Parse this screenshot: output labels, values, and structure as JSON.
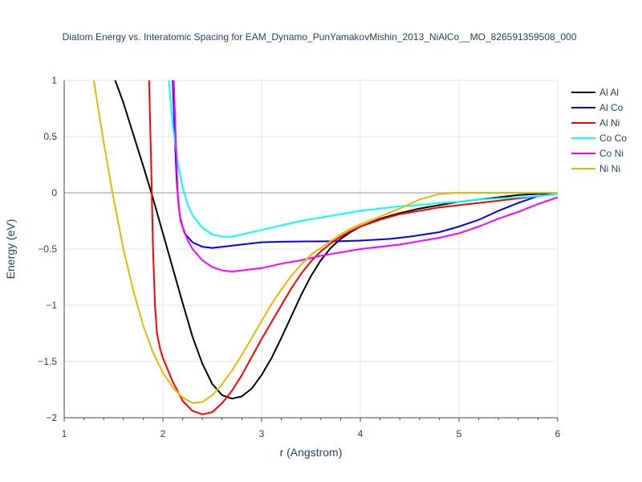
{
  "chart_data": {
    "type": "line",
    "title": "Diatom Energy vs. Interatomic Spacing for EAM_Dynamo_PunYamakovMishin_2013_NiAlCo__MO_826591359508_000",
    "xlabel": "r (Angstrom)",
    "ylabel": "Energy (eV)",
    "xlim": [
      1,
      6
    ],
    "ylim": [
      -2,
      1
    ],
    "xticks": [
      1,
      2,
      3,
      4,
      5,
      6
    ],
    "xtick_labels": [
      "1",
      "2",
      "3",
      "4",
      "5",
      "6"
    ],
    "yticks": [
      1,
      0.5,
      0,
      -0.5,
      -1,
      -1.5,
      -2
    ],
    "ytick_labels": [
      "1",
      "0.5",
      "0",
      "−0.5",
      "−1",
      "−1.5",
      "−2"
    ],
    "grid": true,
    "legend_position": "top-right",
    "series": [
      {
        "name": "Al Al",
        "color": "#000000",
        "points": [
          [
            1.5,
            1.04
          ],
          [
            1.6,
            0.8
          ],
          [
            1.7,
            0.52
          ],
          [
            1.8,
            0.24
          ],
          [
            1.9,
            -0.05
          ],
          [
            2.0,
            -0.36
          ],
          [
            2.1,
            -0.67
          ],
          [
            2.2,
            -0.98
          ],
          [
            2.3,
            -1.28
          ],
          [
            2.4,
            -1.52
          ],
          [
            2.5,
            -1.7
          ],
          [
            2.6,
            -1.8
          ],
          [
            2.7,
            -1.83
          ],
          [
            2.8,
            -1.81
          ],
          [
            2.9,
            -1.74
          ],
          [
            3.0,
            -1.62
          ],
          [
            3.1,
            -1.47
          ],
          [
            3.2,
            -1.29
          ],
          [
            3.3,
            -1.1
          ],
          [
            3.4,
            -0.91
          ],
          [
            3.5,
            -0.74
          ],
          [
            3.6,
            -0.6
          ],
          [
            3.7,
            -0.49
          ],
          [
            3.8,
            -0.41
          ],
          [
            3.9,
            -0.35
          ],
          [
            4.0,
            -0.3
          ],
          [
            4.2,
            -0.23
          ],
          [
            4.4,
            -0.18
          ],
          [
            4.6,
            -0.14
          ],
          [
            4.8,
            -0.11
          ],
          [
            5.0,
            -0.08
          ],
          [
            5.2,
            -0.06
          ],
          [
            5.4,
            -0.04
          ],
          [
            5.6,
            -0.02
          ],
          [
            5.8,
            -0.01
          ],
          [
            6.0,
            0.0
          ]
        ]
      },
      {
        "name": "Al Co",
        "color": "#0000ff",
        "points": [
          [
            2.1,
            1.0
          ],
          [
            2.12,
            0.5
          ],
          [
            2.14,
            0.1
          ],
          [
            2.16,
            -0.12
          ],
          [
            2.18,
            -0.25
          ],
          [
            2.22,
            -0.36
          ],
          [
            2.3,
            -0.44
          ],
          [
            2.4,
            -0.48
          ],
          [
            2.5,
            -0.49
          ],
          [
            2.6,
            -0.48
          ],
          [
            2.8,
            -0.46
          ],
          [
            3.0,
            -0.44
          ],
          [
            3.2,
            -0.435
          ],
          [
            3.5,
            -0.432
          ],
          [
            3.8,
            -0.43
          ],
          [
            4.0,
            -0.425
          ],
          [
            4.3,
            -0.41
          ],
          [
            4.5,
            -0.39
          ],
          [
            4.8,
            -0.35
          ],
          [
            5.0,
            -0.3
          ],
          [
            5.2,
            -0.24
          ],
          [
            5.4,
            -0.16
          ],
          [
            5.6,
            -0.09
          ],
          [
            5.8,
            -0.03
          ],
          [
            6.0,
            0.0
          ]
        ]
      },
      {
        "name": "Al Ni",
        "color": "#ff0000",
        "points": [
          [
            1.86,
            1.0
          ],
          [
            1.88,
            0.3
          ],
          [
            1.9,
            -0.5
          ],
          [
            1.92,
            -1.0
          ],
          [
            1.94,
            -1.25
          ],
          [
            1.97,
            -1.38
          ],
          [
            2.0,
            -1.47
          ],
          [
            2.1,
            -1.68
          ],
          [
            2.2,
            -1.85
          ],
          [
            2.3,
            -1.94
          ],
          [
            2.4,
            -1.97
          ],
          [
            2.5,
            -1.95
          ],
          [
            2.6,
            -1.87
          ],
          [
            2.7,
            -1.76
          ],
          [
            2.8,
            -1.62
          ],
          [
            2.9,
            -1.46
          ],
          [
            3.0,
            -1.3
          ],
          [
            3.1,
            -1.15
          ],
          [
            3.2,
            -1.0
          ],
          [
            3.3,
            -0.85
          ],
          [
            3.4,
            -0.72
          ],
          [
            3.5,
            -0.61
          ],
          [
            3.6,
            -0.52
          ],
          [
            3.7,
            -0.45
          ],
          [
            3.8,
            -0.39
          ],
          [
            3.9,
            -0.34
          ],
          [
            4.0,
            -0.3
          ],
          [
            4.2,
            -0.24
          ],
          [
            4.4,
            -0.19
          ],
          [
            4.6,
            -0.16
          ],
          [
            4.8,
            -0.13
          ],
          [
            5.0,
            -0.11
          ],
          [
            5.3,
            -0.08
          ],
          [
            5.6,
            -0.05
          ],
          [
            6.0,
            -0.01
          ]
        ]
      },
      {
        "name": "Co Co",
        "color": "#00ffff",
        "points": [
          [
            2.06,
            1.0
          ],
          [
            2.1,
            0.6
          ],
          [
            2.15,
            0.27
          ],
          [
            2.2,
            0.05
          ],
          [
            2.25,
            -0.1
          ],
          [
            2.3,
            -0.2
          ],
          [
            2.4,
            -0.31
          ],
          [
            2.5,
            -0.37
          ],
          [
            2.6,
            -0.39
          ],
          [
            2.7,
            -0.39
          ],
          [
            2.8,
            -0.37
          ],
          [
            3.0,
            -0.33
          ],
          [
            3.2,
            -0.29
          ],
          [
            3.4,
            -0.25
          ],
          [
            3.6,
            -0.22
          ],
          [
            3.8,
            -0.19
          ],
          [
            4.0,
            -0.16
          ],
          [
            4.2,
            -0.14
          ],
          [
            4.4,
            -0.12
          ],
          [
            4.6,
            -0.11
          ],
          [
            4.8,
            -0.09
          ],
          [
            5.0,
            -0.08
          ],
          [
            5.2,
            -0.06
          ],
          [
            5.4,
            -0.05
          ],
          [
            5.6,
            -0.04
          ],
          [
            5.8,
            -0.03
          ],
          [
            6.0,
            -0.01
          ]
        ]
      },
      {
        "name": "Co Ni",
        "color": "#ff00ff",
        "points": [
          [
            2.11,
            1.0
          ],
          [
            2.13,
            0.5
          ],
          [
            2.15,
            0.0
          ],
          [
            2.17,
            -0.2
          ],
          [
            2.2,
            -0.3
          ],
          [
            2.25,
            -0.42
          ],
          [
            2.3,
            -0.5
          ],
          [
            2.4,
            -0.6
          ],
          [
            2.5,
            -0.66
          ],
          [
            2.6,
            -0.69
          ],
          [
            2.7,
            -0.7
          ],
          [
            2.8,
            -0.69
          ],
          [
            3.0,
            -0.67
          ],
          [
            3.2,
            -0.63
          ],
          [
            3.4,
            -0.6
          ],
          [
            3.6,
            -0.56
          ],
          [
            3.8,
            -0.53
          ],
          [
            4.0,
            -0.5
          ],
          [
            4.2,
            -0.48
          ],
          [
            4.4,
            -0.46
          ],
          [
            4.6,
            -0.43
          ],
          [
            4.8,
            -0.4
          ],
          [
            5.0,
            -0.36
          ],
          [
            5.2,
            -0.3
          ],
          [
            5.4,
            -0.23
          ],
          [
            5.6,
            -0.17
          ],
          [
            5.8,
            -0.1
          ],
          [
            6.0,
            -0.04
          ]
        ]
      },
      {
        "name": "Ni Ni",
        "color": "#e6b800",
        "points": [
          [
            1.3,
            1.0
          ],
          [
            1.35,
            0.72
          ],
          [
            1.4,
            0.45
          ],
          [
            1.5,
            -0.05
          ],
          [
            1.6,
            -0.5
          ],
          [
            1.7,
            -0.87
          ],
          [
            1.8,
            -1.18
          ],
          [
            1.9,
            -1.42
          ],
          [
            2.0,
            -1.6
          ],
          [
            2.1,
            -1.73
          ],
          [
            2.2,
            -1.82
          ],
          [
            2.3,
            -1.87
          ],
          [
            2.4,
            -1.86
          ],
          [
            2.5,
            -1.8
          ],
          [
            2.6,
            -1.7
          ],
          [
            2.7,
            -1.58
          ],
          [
            2.8,
            -1.44
          ],
          [
            2.9,
            -1.29
          ],
          [
            3.0,
            -1.14
          ],
          [
            3.1,
            -0.99
          ],
          [
            3.2,
            -0.86
          ],
          [
            3.3,
            -0.74
          ],
          [
            3.4,
            -0.64
          ],
          [
            3.5,
            -0.55
          ],
          [
            3.6,
            -0.49
          ],
          [
            3.7,
            -0.43
          ],
          [
            3.8,
            -0.37
          ],
          [
            3.9,
            -0.32
          ],
          [
            4.0,
            -0.28
          ],
          [
            4.2,
            -0.21
          ],
          [
            4.4,
            -0.14
          ],
          [
            4.6,
            -0.06
          ],
          [
            4.8,
            -0.01
          ],
          [
            5.0,
            0.0
          ],
          [
            6.0,
            0.0
          ]
        ]
      }
    ]
  }
}
